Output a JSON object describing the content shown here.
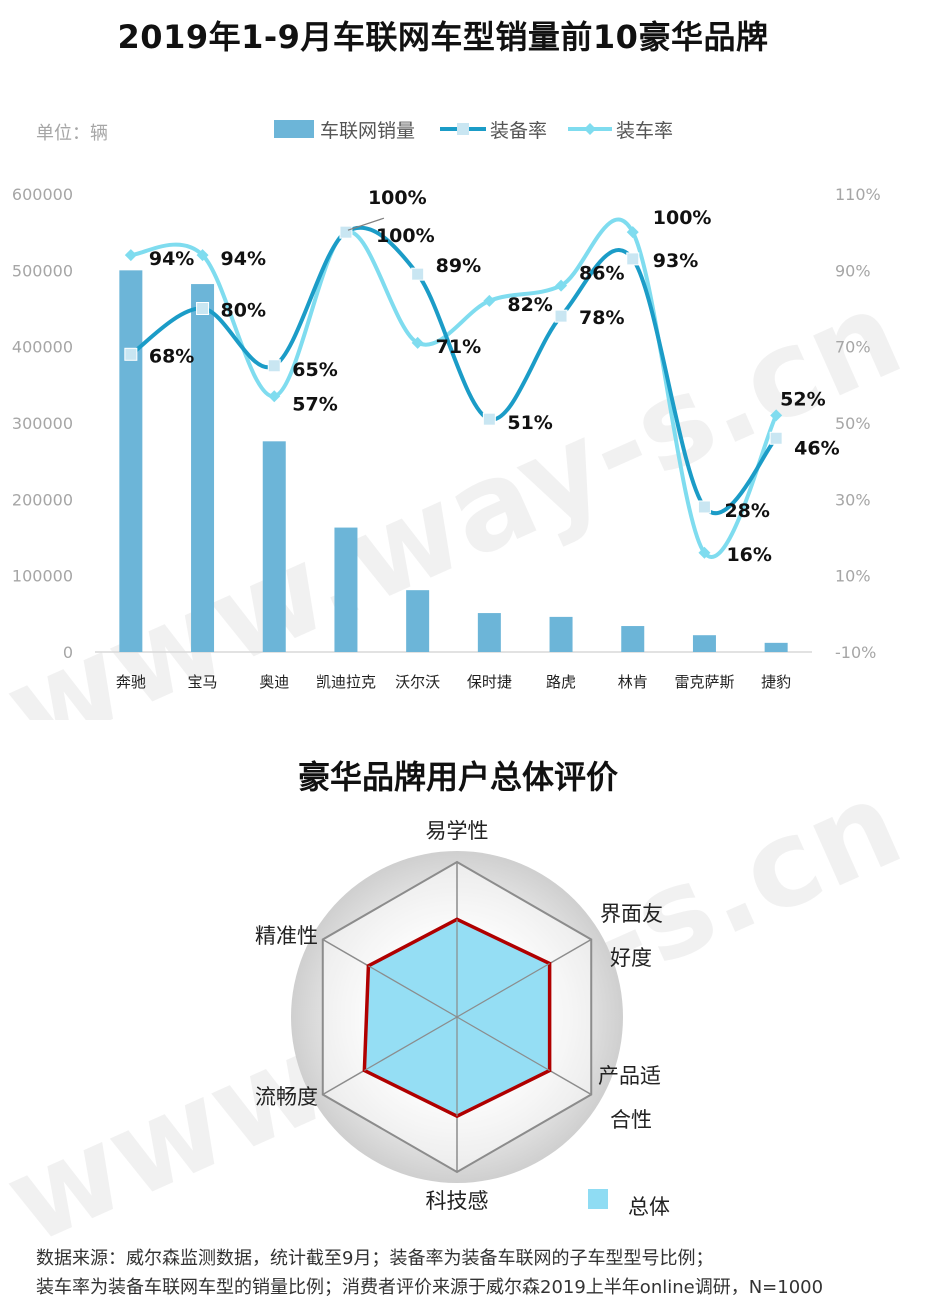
{
  "title": "2019年1-9月车联网车型销量前10豪华品牌",
  "unit_label": "单位：辆",
  "watermark": "www.way-s.cn",
  "chart_data": [
    {
      "type": "bar",
      "title": "2019年1-9月车联网车型销量前10豪华品牌",
      "categories": [
        "奔驰",
        "宝马",
        "奥迪",
        "凯迪拉克",
        "沃尔沃",
        "保时捷",
        "路虎",
        "林肯",
        "雷克萨斯",
        "捷豹"
      ],
      "series": [
        {
          "name": "车联网销量",
          "type": "bar",
          "axis": "left",
          "color": "#6cb5d8",
          "values": [
            500000,
            482000,
            276000,
            163000,
            81000,
            51000,
            46000,
            34000,
            22000,
            12000
          ]
        },
        {
          "name": "装备率",
          "type": "line",
          "axis": "right",
          "color": "#1b9cc7",
          "marker": "square",
          "values": [
            68,
            80,
            65,
            100,
            89,
            51,
            78,
            93,
            28,
            46
          ],
          "labels": [
            "68%",
            "80%",
            "65%",
            "100%",
            "89%",
            "51%",
            "78%",
            "93%",
            "28%",
            "46%"
          ]
        },
        {
          "name": "装车率",
          "type": "line",
          "axis": "right",
          "color": "#7fdcef",
          "marker": "diamond",
          "values": [
            94,
            94,
            57,
            100,
            71,
            82,
            86,
            100,
            16,
            52
          ],
          "labels": [
            "94%",
            "94%",
            "57%",
            "100%",
            "71%",
            "82%",
            "86%",
            "100%",
            "16%",
            "52%"
          ]
        }
      ],
      "y_left": {
        "ylim": [
          0,
          600000
        ],
        "ticks": [
          "0",
          "100000",
          "200000",
          "300000",
          "400000",
          "500000",
          "600000"
        ]
      },
      "y_right": {
        "ylim": [
          -10,
          110
        ],
        "ticks": [
          "-10%",
          "10%",
          "30%",
          "50%",
          "70%",
          "90%",
          "110%"
        ]
      },
      "legend": "top-center",
      "grid": false
    },
    {
      "type": "radar",
      "title": "豪华品牌用户总体评价",
      "axes": [
        "易学性",
        "界面友好度",
        "产品适合性",
        "科技感",
        "流畅度",
        "精准性"
      ],
      "axis_label_lines": [
        [
          "易学性"
        ],
        [
          "界面友",
          "好度"
        ],
        [
          "产品适",
          "合性"
        ],
        [
          "科技感"
        ],
        [
          "流畅度"
        ],
        [
          "精准性"
        ]
      ],
      "series": [
        {
          "name": "总体",
          "color": "#8fdcf3",
          "values": [
            0.63,
            0.69,
            0.69,
            0.64,
            0.69,
            0.66
          ]
        }
      ],
      "outline_color": "#b00000",
      "legend": "bottom-right"
    }
  ],
  "footer": {
    "line1": "数据来源：威尔森监测数据，统计截至9月；装备率为装备车联网的子车型型号比例；",
    "line2": "装车率为装备车联网车型的销量比例；消费者评价来源于威尔森2019上半年online调研，N=1000"
  }
}
